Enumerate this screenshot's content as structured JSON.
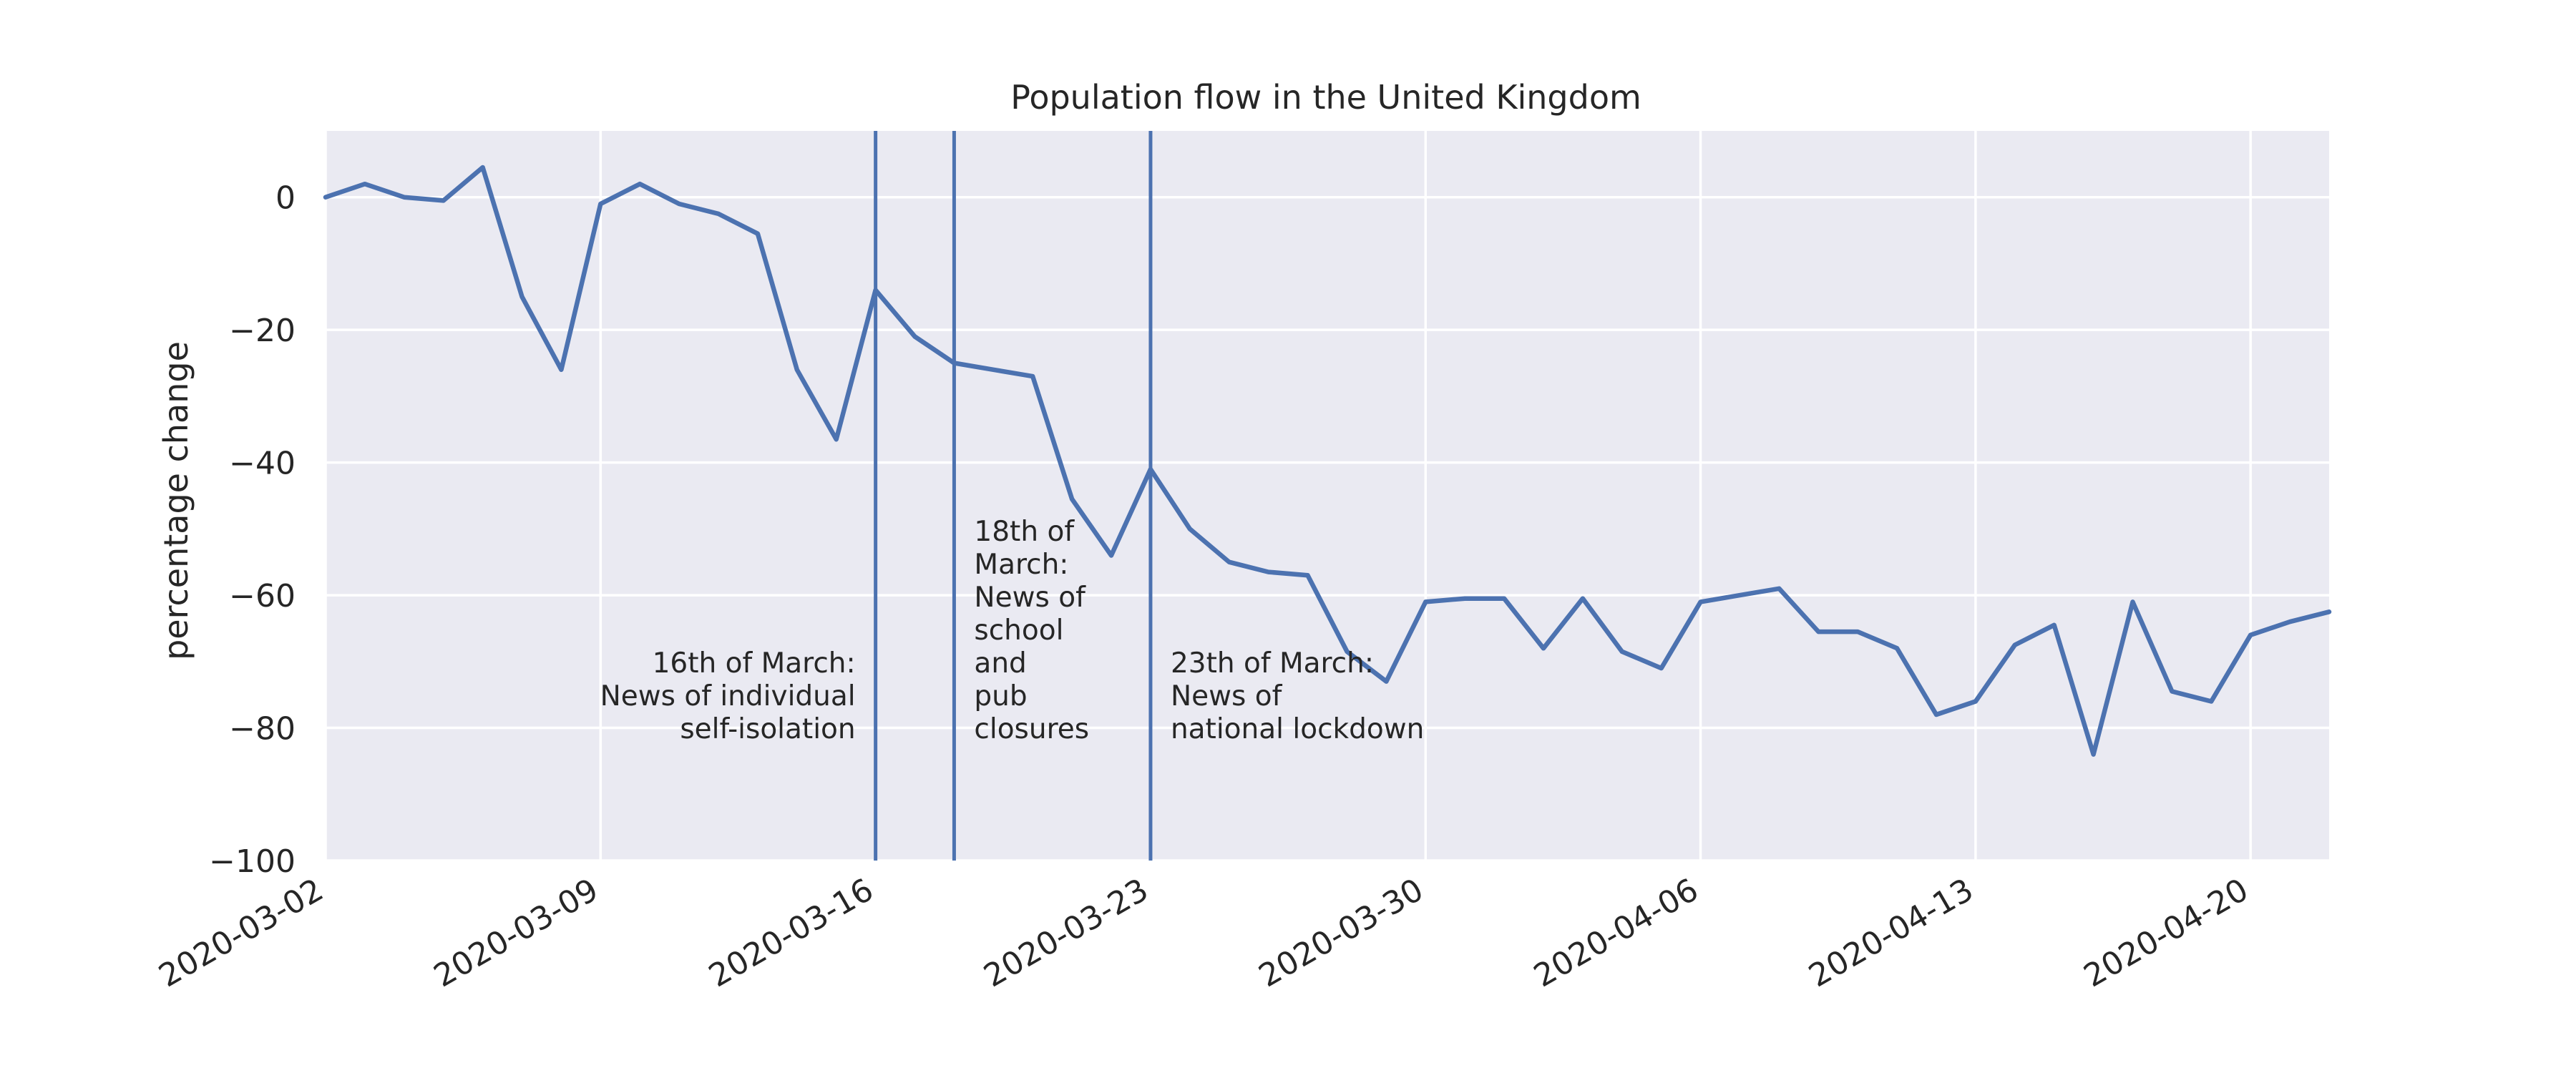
{
  "chart_data": {
    "type": "line",
    "title": "Population flow in the United Kingdom",
    "xlabel": "",
    "ylabel": "percentage change",
    "ylim": [
      -100,
      10
    ],
    "xlim": [
      "2020-03-02",
      "2020-04-22"
    ],
    "y_ticks": [
      0,
      -20,
      -40,
      -60,
      -80,
      -100
    ],
    "y_tick_labels": [
      "0",
      "−20",
      "−40",
      "−60",
      "−80",
      "−100"
    ],
    "x_ticks": [
      "2020-03-02",
      "2020-03-09",
      "2020-03-16",
      "2020-03-23",
      "2020-03-30",
      "2020-04-06",
      "2020-04-13",
      "2020-04-20"
    ],
    "grid": true,
    "colors": {
      "line": "#4c72b0",
      "plot_bg": "#eaeaf2",
      "grid": "#ffffff",
      "text": "#262626"
    },
    "series": [
      {
        "x": [
          "2020-03-02",
          "2020-03-03",
          "2020-03-04",
          "2020-03-05",
          "2020-03-06",
          "2020-03-07",
          "2020-03-08",
          "2020-03-09",
          "2020-03-10",
          "2020-03-11",
          "2020-03-12",
          "2020-03-13",
          "2020-03-14",
          "2020-03-15",
          "2020-03-16",
          "2020-03-17",
          "2020-03-18",
          "2020-03-19",
          "2020-03-20",
          "2020-03-21",
          "2020-03-22",
          "2020-03-23",
          "2020-03-24",
          "2020-03-25",
          "2020-03-26",
          "2020-03-27",
          "2020-03-28",
          "2020-03-29",
          "2020-03-30",
          "2020-03-31",
          "2020-04-01",
          "2020-04-02",
          "2020-04-03",
          "2020-04-04",
          "2020-04-05",
          "2020-04-06",
          "2020-04-07",
          "2020-04-08",
          "2020-04-09",
          "2020-04-10",
          "2020-04-11",
          "2020-04-12",
          "2020-04-13",
          "2020-04-14",
          "2020-04-15",
          "2020-04-16",
          "2020-04-17",
          "2020-04-18",
          "2020-04-19",
          "2020-04-20",
          "2020-04-21",
          "2020-04-22"
        ],
        "values": [
          0,
          2,
          0,
          -0.5,
          4.5,
          -15,
          -26,
          -1,
          2,
          -1,
          -2.5,
          -5.5,
          -26,
          -36.5,
          -14,
          -21,
          -25,
          -26,
          -27,
          -45.5,
          -54,
          -41,
          -50,
          -55,
          -56.5,
          -57,
          -68.5,
          -73,
          -61,
          -60.5,
          -60.5,
          -68,
          -60.5,
          -68.5,
          -71,
          -61,
          -60,
          -59,
          -65.5,
          -65.5,
          -68,
          -78,
          -76,
          -67.5,
          -64.5,
          -84,
          -61,
          -74.5,
          -76,
          -66,
          -64,
          -62.5
        ]
      }
    ],
    "vlines": [
      {
        "x": "2020-03-16",
        "label_lines": [
          "16th of March:",
          "News of individual",
          "self-isolation"
        ],
        "align": "right"
      },
      {
        "x": "2020-03-18",
        "label_lines": [
          "18th of",
          "March:",
          "News of",
          "school",
          "and",
          "pub",
          "closures"
        ],
        "align": "left"
      },
      {
        "x": "2020-03-23",
        "label_lines": [
          "23th of March:",
          "News of",
          "national lockdown"
        ],
        "align": "left"
      }
    ]
  }
}
